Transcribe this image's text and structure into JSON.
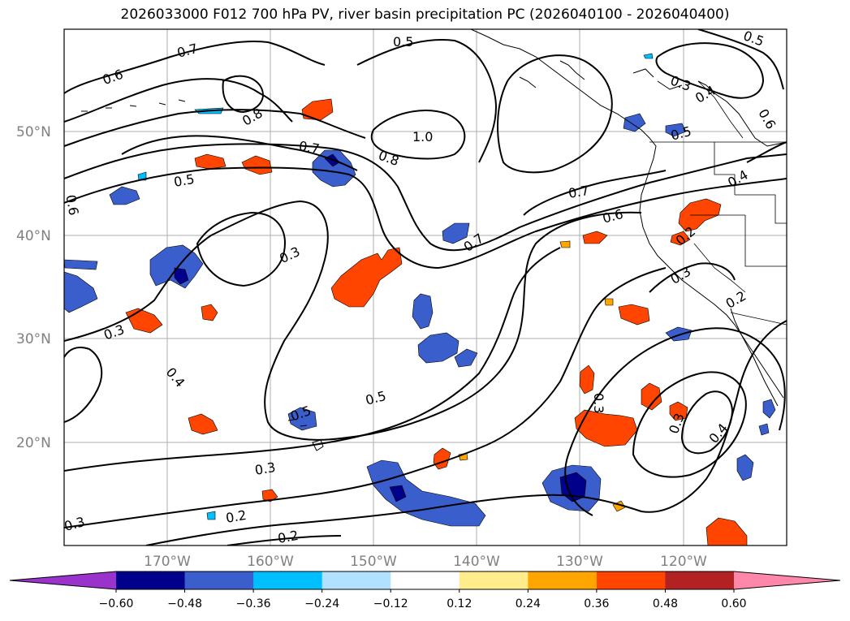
{
  "title": "2026033000 F012 700 hPa PV, river basin precipitation PC (2026040100 - 2026040400)",
  "axes": {
    "lat_labels": [
      {
        "text": "50°N",
        "value": 50
      },
      {
        "text": "40°N",
        "value": 40
      },
      {
        "text": "30°N",
        "value": 30
      },
      {
        "text": "20°N",
        "value": 20
      }
    ],
    "lon_labels": [
      {
        "text": "170°W",
        "value": -170
      },
      {
        "text": "160°W",
        "value": -160
      },
      {
        "text": "150°W",
        "value": -150
      },
      {
        "text": "140°W",
        "value": -140
      },
      {
        "text": "130°W",
        "value": -130
      },
      {
        "text": "120°W",
        "value": -120
      }
    ]
  },
  "colorbar": {
    "ticks": [
      "−0.60",
      "−0.48",
      "−0.36",
      "−0.24",
      "−0.12",
      "0.12",
      "0.24",
      "0.36",
      "0.48",
      "0.60"
    ],
    "colors": [
      "#9933cc",
      "#00008b",
      "#3a5fcd",
      "#00bfff",
      "#b0e2ff",
      "#ffffff",
      "#ffec8b",
      "#ffa500",
      "#ff4500",
      "#b22222",
      "#ff88aa"
    ]
  },
  "contour_labels": [
    "0.7",
    "0.6",
    "0.8",
    "0.5",
    "1.0",
    "0.7",
    "0.8",
    "0.5",
    "0.6",
    "0.3",
    "0.7",
    "0.7",
    "0.6",
    "0.3",
    "0.4",
    "0.5",
    "0.5",
    "0.3",
    "0.3",
    "0.2",
    "0.2",
    "0.3",
    "0.4",
    "0.3",
    "0.4",
    "0.5",
    "0.6",
    "0.4",
    "0.2",
    "0.3",
    "0.5",
    "0.3",
    "0.2"
  ]
}
